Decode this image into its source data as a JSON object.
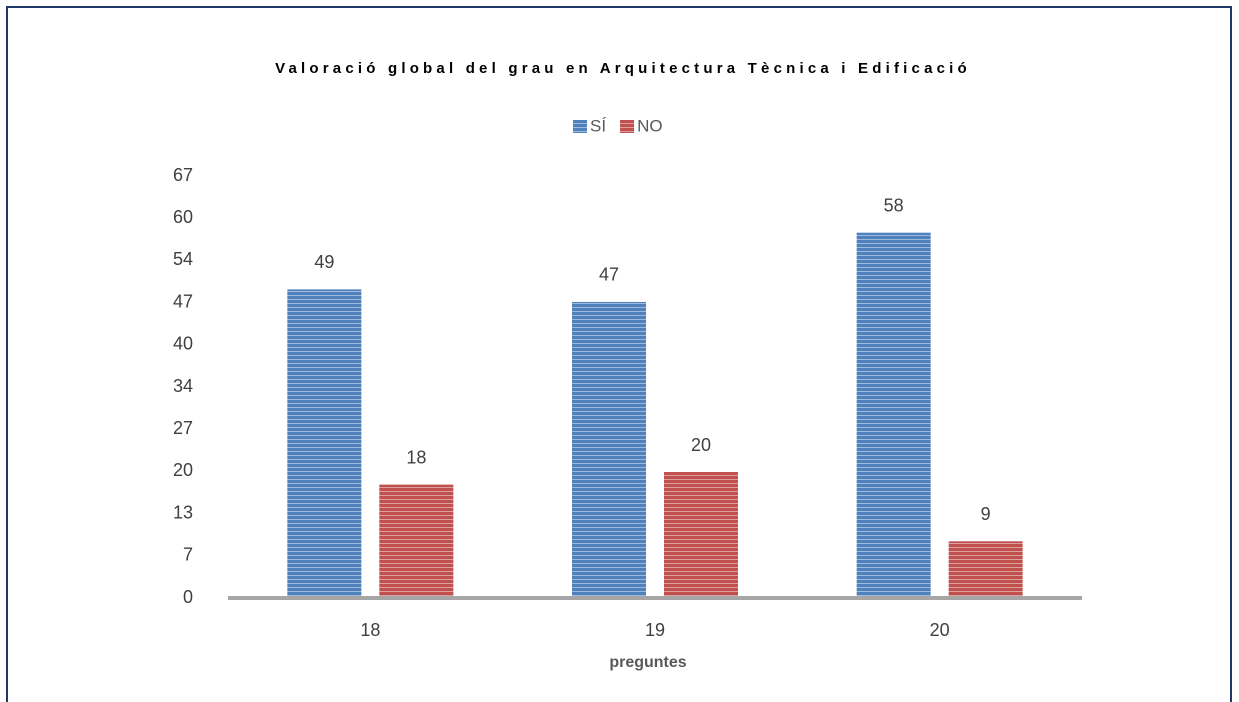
{
  "chart_data": {
    "type": "bar",
    "title": "Valoració global del grau en Arquitectura Tècnica i Edificació",
    "x_label": "preguntes",
    "categories": [
      "18",
      "19",
      "20"
    ],
    "series": [
      {
        "name": "SÍ",
        "color": "#4f81bd",
        "values": [
          49,
          47,
          58
        ]
      },
      {
        "name": "NO",
        "color": "#c0504d",
        "values": [
          18,
          20,
          9
        ]
      }
    ],
    "ylim": [
      0,
      67
    ],
    "yticks": [
      0,
      {
        "value": 6.7,
        "label": "7"
      },
      {
        "value": 13.4,
        "label": "13"
      },
      {
        "value": 20.1,
        "label": "20"
      },
      {
        "value": 26.8,
        "label": "27"
      },
      {
        "value": 33.5,
        "label": "34"
      },
      {
        "value": 40.2,
        "label": "40"
      },
      {
        "value": 46.9,
        "label": "47"
      },
      {
        "value": 53.6,
        "label": "54"
      },
      {
        "value": 60.3,
        "label": "60"
      },
      67
    ],
    "legend": "top",
    "grid": false
  }
}
